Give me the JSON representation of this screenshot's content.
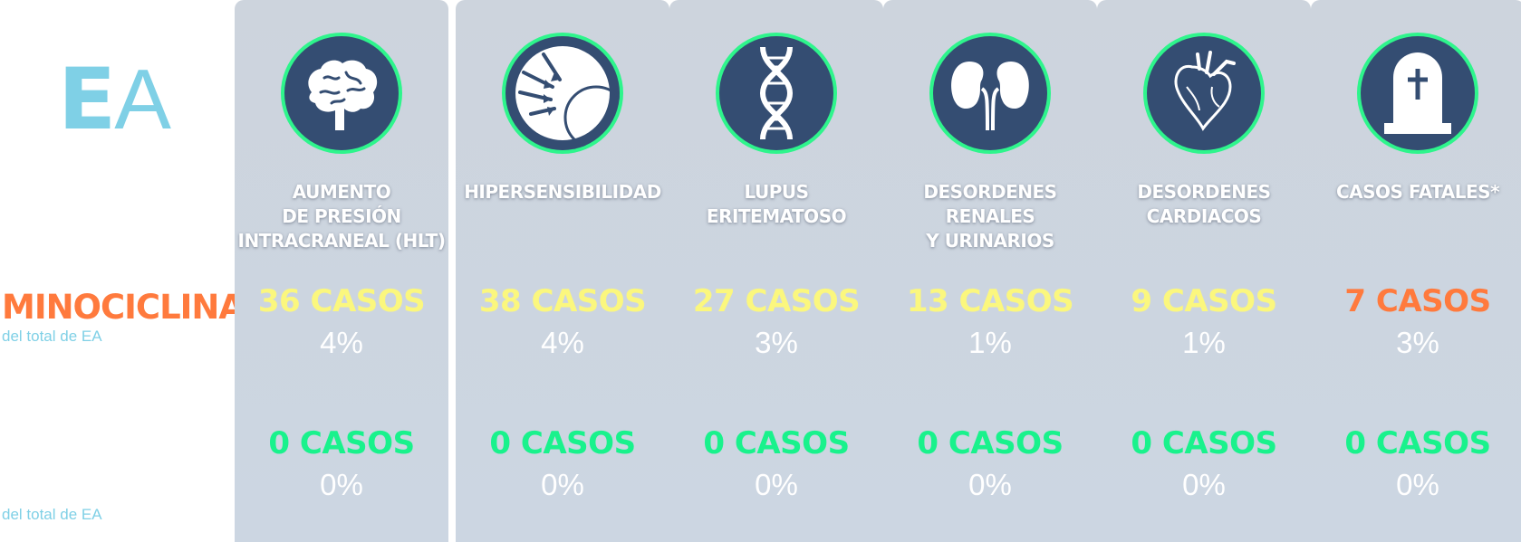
{
  "header": {
    "logo_bold": "E",
    "logo_light": "A"
  },
  "drug": {
    "name": "MINOCICLINA",
    "subtitle_top": "del total de EA",
    "subtitle_bottom": "del total de EA"
  },
  "colors": {
    "column_bg": "#cdd4dd",
    "icon_ring": "#2ef58c",
    "icon_fill": "#344d72",
    "accent_orange": "#ff7a3d",
    "cases_yellow": "#fbf77e",
    "cases_green": "#19f28c",
    "logo_blue": "#7fd0e6"
  },
  "columns": [
    {
      "icon": "brain-icon",
      "title": "AUMENTO\nDE PRESIÓN\nINTRACRANEAL (HLT)",
      "cases_top": "36 CASOS",
      "pct_top": "4%",
      "cases_bottom": "0 CASOS",
      "pct_bottom": "0%"
    },
    {
      "icon": "hypersensitivity-icon",
      "title": "HIPERSENSIBILIDAD",
      "cases_top": "38 CASOS",
      "pct_top": "4%",
      "cases_bottom": "0 CASOS",
      "pct_bottom": "0%"
    },
    {
      "icon": "dna-icon",
      "title": "LUPUS\nERITEMATOSO",
      "cases_top": "27 CASOS",
      "pct_top": "3%",
      "cases_bottom": "0 CASOS",
      "pct_bottom": "0%"
    },
    {
      "icon": "kidneys-icon",
      "title": "DESORDENES\nRENALES\nY URINARIOS",
      "cases_top": "13 CASOS",
      "pct_top": "1%",
      "cases_bottom": "0 CASOS",
      "pct_bottom": "0%"
    },
    {
      "icon": "heart-icon",
      "title": "DESORDENES\nCARDIACOS",
      "cases_top": "9 CASOS",
      "pct_top": "1%",
      "cases_bottom": "0 CASOS",
      "pct_bottom": "0%"
    },
    {
      "icon": "tombstone-icon",
      "title": "CASOS FATALES*",
      "cases_top": "7 CASOS",
      "pct_top": "3%",
      "cases_bottom": "0 CASOS",
      "pct_bottom": "0%"
    }
  ]
}
